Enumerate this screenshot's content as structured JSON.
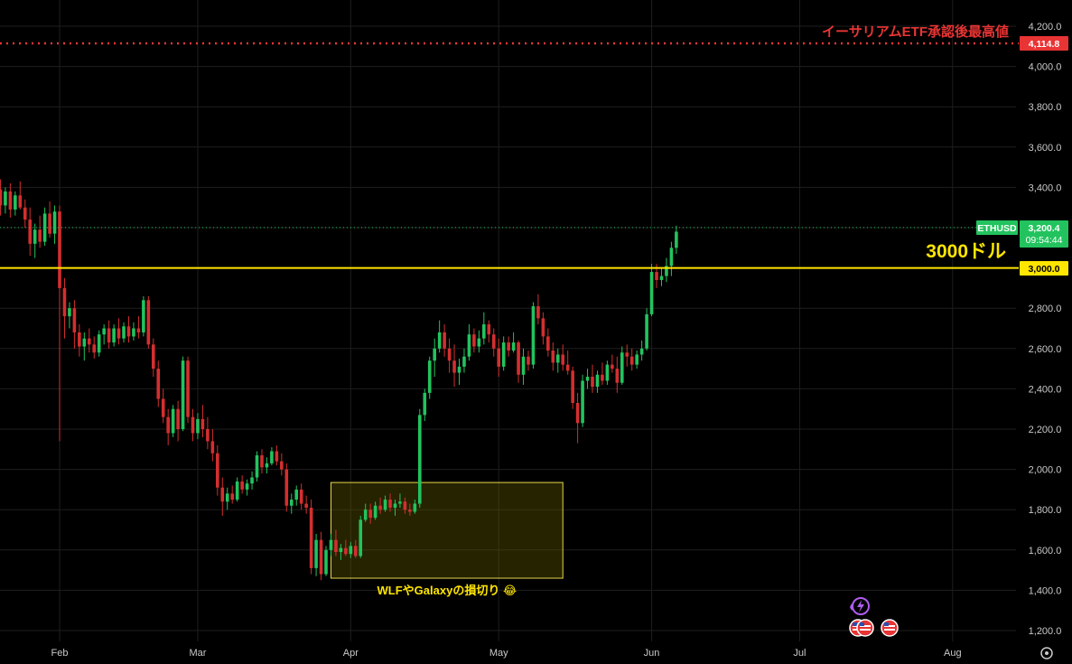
{
  "chart_data": {
    "type": "candlestick",
    "symbol": "ETHUSD",
    "y_axis": {
      "ticks": [
        "4,200.0",
        "4,000.0",
        "3,800.0",
        "3,600.0",
        "3,400.0",
        "3,200.0",
        "3,000.0",
        "2,800.0",
        "2,600.0",
        "2,400.0",
        "2,200.0",
        "2,000.0",
        "1,800.0",
        "1,600.0",
        "1,400.0",
        "1,200.0"
      ],
      "tick_values": [
        4200,
        4000,
        3800,
        3600,
        3400,
        3200,
        3000,
        2800,
        2600,
        2400,
        2200,
        2000,
        1800,
        1600,
        1400,
        1200
      ],
      "range": [
        1160,
        4290
      ]
    },
    "x_axis": {
      "ticks": [
        {
          "label": "Feb",
          "day": 0
        },
        {
          "label": "Mar",
          "day": 28
        },
        {
          "label": "Apr",
          "day": 59
        },
        {
          "label": "May",
          "day": 89
        },
        {
          "label": "Jun",
          "day": 120
        },
        {
          "label": "Jul",
          "day": 150
        },
        {
          "label": "Aug",
          "day": 181
        }
      ]
    },
    "last_price": {
      "value": 3200.4,
      "label": "3,200.4",
      "countdown": "09:54:44"
    },
    "colors": {
      "up": "#26a69a",
      "up_bright": "#22c35e",
      "down": "#d32f2f",
      "level_red": "#e83434",
      "level_yellow": "#ffe500"
    },
    "annotations": {
      "ath_level": {
        "value": 4114.8,
        "label": "4,114.8",
        "text": "イーサリアムETF承認後最高値"
      },
      "level_3000": {
        "value": 3000.0,
        "label": "3,000.0",
        "text": "3000ドル"
      },
      "range_box": {
        "day_start": 55,
        "day_end": 102,
        "price_low": 1460,
        "price_high": 1935,
        "text": "WLFやGalaxyの損切り 😂"
      }
    },
    "ohlc": [
      [
        -12,
        3390,
        3440,
        3260,
        3310
      ],
      [
        -11,
        3310,
        3400,
        3270,
        3380
      ],
      [
        -10,
        3380,
        3420,
        3250,
        3290
      ],
      [
        -9,
        3290,
        3380,
        3260,
        3360
      ],
      [
        -8,
        3360,
        3430,
        3290,
        3300
      ],
      [
        -7,
        3300,
        3340,
        3200,
        3240
      ],
      [
        -6,
        3240,
        3300,
        3060,
        3120
      ],
      [
        -5,
        3120,
        3220,
        3050,
        3190
      ],
      [
        -4,
        3190,
        3260,
        3100,
        3130
      ],
      [
        -3,
        3130,
        3300,
        3110,
        3270
      ],
      [
        -2,
        3270,
        3330,
        3150,
        3170
      ],
      [
        -1,
        3170,
        3310,
        3120,
        3280
      ],
      [
        0,
        3280,
        3310,
        2140,
        2900
      ],
      [
        1,
        2900,
        2950,
        2650,
        2760
      ],
      [
        2,
        2760,
        2830,
        2700,
        2800
      ],
      [
        3,
        2800,
        2840,
        2600,
        2680
      ],
      [
        4,
        2680,
        2720,
        2560,
        2610
      ],
      [
        5,
        2610,
        2680,
        2540,
        2650
      ],
      [
        6,
        2650,
        2700,
        2580,
        2620
      ],
      [
        7,
        2620,
        2660,
        2550,
        2580
      ],
      [
        8,
        2580,
        2690,
        2560,
        2670
      ],
      [
        9,
        2670,
        2720,
        2620,
        2700
      ],
      [
        10,
        2700,
        2740,
        2600,
        2630
      ],
      [
        11,
        2630,
        2720,
        2610,
        2700
      ],
      [
        12,
        2700,
        2750,
        2620,
        2650
      ],
      [
        13,
        2650,
        2730,
        2630,
        2710
      ],
      [
        14,
        2710,
        2760,
        2630,
        2660
      ],
      [
        15,
        2660,
        2730,
        2640,
        2700
      ],
      [
        16,
        2700,
        2760,
        2650,
        2680
      ],
      [
        17,
        2680,
        2860,
        2660,
        2840
      ],
      [
        18,
        2840,
        2860,
        2600,
        2620
      ],
      [
        19,
        2620,
        2650,
        2460,
        2500
      ],
      [
        20,
        2500,
        2540,
        2310,
        2350
      ],
      [
        21,
        2350,
        2400,
        2230,
        2260
      ],
      [
        22,
        2260,
        2300,
        2120,
        2180
      ],
      [
        23,
        2180,
        2320,
        2160,
        2300
      ],
      [
        24,
        2300,
        2340,
        2140,
        2200
      ],
      [
        25,
        2200,
        2560,
        2190,
        2540
      ],
      [
        26,
        2540,
        2560,
        2230,
        2260
      ],
      [
        27,
        2260,
        2300,
        2140,
        2180
      ],
      [
        28,
        2180,
        2280,
        2150,
        2250
      ],
      [
        29,
        2250,
        2320,
        2160,
        2200
      ],
      [
        30,
        2200,
        2260,
        2100,
        2140
      ],
      [
        31,
        2140,
        2200,
        2040,
        2080
      ],
      [
        32,
        2080,
        2120,
        1870,
        1910
      ],
      [
        33,
        1910,
        1960,
        1770,
        1840
      ],
      [
        34,
        1840,
        1910,
        1800,
        1880
      ],
      [
        35,
        1880,
        1920,
        1830,
        1850
      ],
      [
        36,
        1850,
        1960,
        1840,
        1940
      ],
      [
        37,
        1940,
        1970,
        1880,
        1900
      ],
      [
        38,
        1900,
        1950,
        1870,
        1930
      ],
      [
        39,
        1930,
        1990,
        1900,
        1960
      ],
      [
        40,
        1960,
        2090,
        1940,
        2070
      ],
      [
        41,
        2070,
        2100,
        1980,
        2010
      ],
      [
        42,
        2010,
        2060,
        1980,
        2030
      ],
      [
        43,
        2030,
        2110,
        2020,
        2090
      ],
      [
        44,
        2090,
        2120,
        2020,
        2040
      ],
      [
        45,
        2040,
        2080,
        1970,
        2000
      ],
      [
        46,
        2000,
        2030,
        1790,
        1820
      ],
      [
        47,
        1820,
        1880,
        1780,
        1850
      ],
      [
        48,
        1850,
        1920,
        1820,
        1900
      ],
      [
        49,
        1900,
        1930,
        1800,
        1830
      ],
      [
        50,
        1830,
        1870,
        1780,
        1810
      ],
      [
        51,
        1810,
        1850,
        1480,
        1510
      ],
      [
        52,
        1510,
        1680,
        1470,
        1650
      ],
      [
        53,
        1650,
        1690,
        1450,
        1480
      ],
      [
        54,
        1480,
        1620,
        1470,
        1600
      ],
      [
        55,
        1600,
        1680,
        1570,
        1650
      ],
      [
        56,
        1650,
        1700,
        1570,
        1590
      ],
      [
        57,
        1590,
        1630,
        1550,
        1610
      ],
      [
        58,
        1610,
        1650,
        1570,
        1580
      ],
      [
        59,
        1580,
        1640,
        1560,
        1620
      ],
      [
        60,
        1620,
        1650,
        1560,
        1570
      ],
      [
        61,
        1570,
        1770,
        1560,
        1750
      ],
      [
        62,
        1750,
        1830,
        1740,
        1800
      ],
      [
        63,
        1800,
        1830,
        1730,
        1760
      ],
      [
        64,
        1760,
        1840,
        1750,
        1820
      ],
      [
        65,
        1820,
        1860,
        1780,
        1800
      ],
      [
        66,
        1800,
        1870,
        1790,
        1850
      ],
      [
        67,
        1850,
        1880,
        1790,
        1810
      ],
      [
        68,
        1810,
        1850,
        1770,
        1830
      ],
      [
        69,
        1830,
        1880,
        1810,
        1840
      ],
      [
        70,
        1840,
        1860,
        1780,
        1800
      ],
      [
        71,
        1800,
        1830,
        1770,
        1790
      ],
      [
        72,
        1790,
        1850,
        1780,
        1830
      ],
      [
        73,
        1830,
        2300,
        1810,
        2270
      ],
      [
        74,
        2270,
        2400,
        2240,
        2380
      ],
      [
        75,
        2380,
        2560,
        2350,
        2540
      ],
      [
        76,
        2540,
        2650,
        2460,
        2600
      ],
      [
        77,
        2600,
        2740,
        2580,
        2680
      ],
      [
        78,
        2680,
        2720,
        2560,
        2600
      ],
      [
        79,
        2600,
        2650,
        2480,
        2540
      ],
      [
        80,
        2540,
        2620,
        2410,
        2480
      ],
      [
        81,
        2480,
        2550,
        2420,
        2510
      ],
      [
        82,
        2510,
        2600,
        2480,
        2560
      ],
      [
        83,
        2560,
        2720,
        2540,
        2670
      ],
      [
        84,
        2670,
        2700,
        2580,
        2610
      ],
      [
        85,
        2610,
        2690,
        2580,
        2650
      ],
      [
        86,
        2650,
        2780,
        2620,
        2720
      ],
      [
        87,
        2720,
        2740,
        2630,
        2670
      ],
      [
        88,
        2670,
        2700,
        2560,
        2600
      ],
      [
        89,
        2600,
        2650,
        2460,
        2510
      ],
      [
        90,
        2510,
        2660,
        2490,
        2630
      ],
      [
        91,
        2630,
        2660,
        2560,
        2590
      ],
      [
        92,
        2590,
        2680,
        2580,
        2630
      ],
      [
        93,
        2630,
        2640,
        2430,
        2470
      ],
      [
        94,
        2470,
        2600,
        2420,
        2560
      ],
      [
        95,
        2560,
        2590,
        2490,
        2520
      ],
      [
        96,
        2520,
        2830,
        2500,
        2810
      ],
      [
        97,
        2810,
        2870,
        2720,
        2750
      ],
      [
        98,
        2750,
        2780,
        2620,
        2660
      ],
      [
        99,
        2660,
        2700,
        2560,
        2590
      ],
      [
        100,
        2590,
        2630,
        2490,
        2530
      ],
      [
        101,
        2530,
        2600,
        2480,
        2570
      ],
      [
        102,
        2570,
        2620,
        2490,
        2520
      ],
      [
        103,
        2520,
        2590,
        2470,
        2490
      ],
      [
        104,
        2490,
        2510,
        2300,
        2330
      ],
      [
        105,
        2330,
        2380,
        2130,
        2230
      ],
      [
        106,
        2230,
        2470,
        2210,
        2440
      ],
      [
        107,
        2440,
        2500,
        2400,
        2460
      ],
      [
        108,
        2460,
        2520,
        2380,
        2410
      ],
      [
        109,
        2410,
        2490,
        2380,
        2470
      ],
      [
        110,
        2470,
        2530,
        2420,
        2440
      ],
      [
        111,
        2440,
        2540,
        2420,
        2520
      ],
      [
        112,
        2520,
        2570,
        2480,
        2500
      ],
      [
        113,
        2500,
        2560,
        2380,
        2430
      ],
      [
        114,
        2430,
        2610,
        2420,
        2580
      ],
      [
        115,
        2580,
        2620,
        2510,
        2560
      ],
      [
        116,
        2560,
        2600,
        2490,
        2520
      ],
      [
        117,
        2520,
        2590,
        2500,
        2570
      ],
      [
        118,
        2570,
        2640,
        2540,
        2600
      ],
      [
        119,
        2600,
        2800,
        2590,
        2770
      ],
      [
        120,
        2770,
        3020,
        2760,
        2980
      ],
      [
        121,
        2980,
        3020,
        2900,
        2940
      ],
      [
        122,
        2940,
        3000,
        2910,
        2960
      ],
      [
        123,
        2960,
        3050,
        2930,
        3010
      ],
      [
        124,
        3010,
        3130,
        2960,
        3100
      ],
      [
        125,
        3100,
        3210,
        3070,
        3180
      ]
    ]
  },
  "icons": {
    "ai_icon": "sparkle-bolt-icon",
    "event_icons": "us-flag-icon",
    "settings_icon": "gear-icon"
  }
}
